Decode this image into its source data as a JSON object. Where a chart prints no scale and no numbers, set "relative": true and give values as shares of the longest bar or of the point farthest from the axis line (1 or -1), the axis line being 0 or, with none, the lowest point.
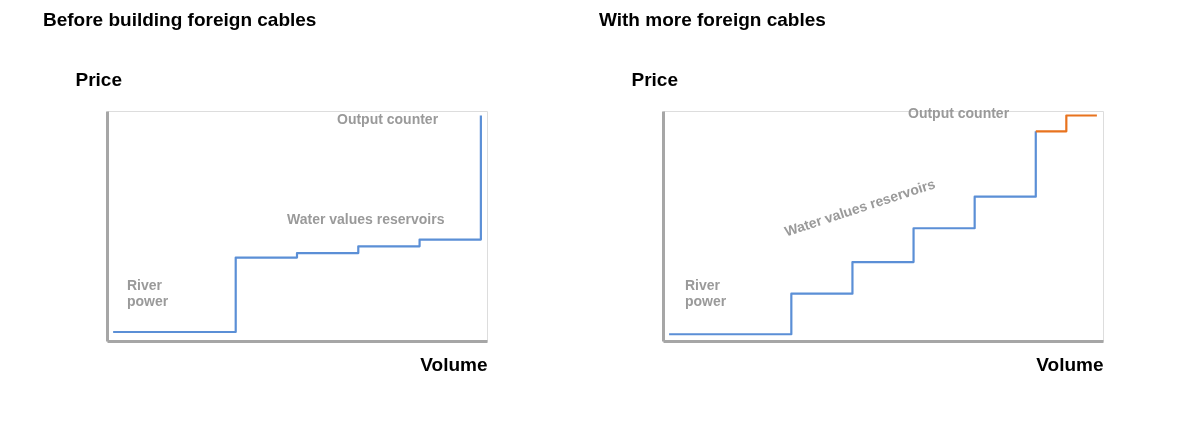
{
  "chart_data": [
    {
      "type": "step",
      "title": "Before building foreign cables",
      "xlabel": "Volume",
      "ylabel": "Price",
      "relative": true,
      "legend": false,
      "grid": false,
      "marker": "none",
      "categories": [
        null,
        null,
        null,
        null,
        null,
        null,
        null,
        null,
        null,
        null,
        null,
        null,
        null
      ],
      "series": [
        {
          "color": "#5b8fd6",
          "values": [
            0.04,
            0.04,
            0.04,
            0.04,
            0.37,
            0.37,
            0.39,
            0.39,
            0.42,
            0.42,
            0.45,
            0.45,
            1
          ]
        }
      ],
      "annotations": [
        "River power",
        "Water values reservoirs",
        "Output counter"
      ]
    },
    {
      "type": "step",
      "title": "With more foreign cables",
      "xlabel": "Volume",
      "ylabel": "Price",
      "relative": true,
      "legend": false,
      "grid": false,
      "marker": "none",
      "categories": [
        null,
        null,
        null,
        null,
        null,
        null,
        null,
        null,
        null,
        null,
        null,
        null,
        null,
        null,
        null
      ],
      "series": [
        {
          "color": "#5b8fd6",
          "values": [
            0.03,
            0.03,
            0.03,
            0.03,
            0.21,
            0.21,
            0.35,
            0.35,
            0.5,
            0.5,
            0.64,
            0.64,
            0.93,
            null,
            null
          ]
        },
        {
          "color": "#e8731e",
          "values": [
            null,
            null,
            null,
            null,
            null,
            null,
            null,
            null,
            null,
            null,
            null,
            null,
            0.93,
            1,
            1
          ]
        }
      ],
      "annotations": [
        "River power",
        "Water values reservoirs",
        "Output counter"
      ]
    }
  ]
}
